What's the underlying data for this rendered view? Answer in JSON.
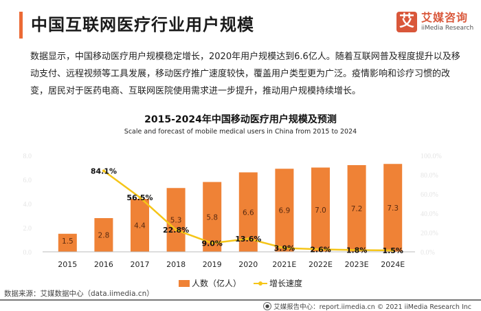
{
  "header": {
    "title": "中国互联网医疗行业用户规模",
    "logo_mark": "艾",
    "logo_cn": "艾媒咨询",
    "logo_en": "iiMedia Research",
    "accent_color": "#ec6a35"
  },
  "description": "数据显示，中国移动医疗用户规模稳定增长，2020年用户规模达到6.6亿人。随着互联网普及程度提升以及移动支付、远程视频等工具发展，移动医疗推广速度较快，覆盖用户类型更为广泛。疫情影响和诊疗习惯的改变，居民对于医药电商、互联网医院使用需求进一步提升，推动用户规模持续增长。",
  "chart_data": {
    "type": "bar",
    "title": "2015-2024年中国移动医疗用户规模及预测",
    "subtitle": "Scale and forecast of mobile medical users in China from 2015 to 2024",
    "categories": [
      "2015",
      "2016",
      "2017",
      "2018",
      "2019",
      "2020",
      "2021E",
      "2022E",
      "2023E",
      "2024E"
    ],
    "series": [
      {
        "name": "人数（亿人）",
        "type": "bar",
        "axis": "left",
        "color": "#ef8236",
        "values": [
          1.5,
          2.8,
          4.4,
          5.3,
          5.8,
          6.6,
          6.9,
          7.0,
          7.2,
          7.3
        ],
        "labels": [
          "1.5",
          "2.8",
          "4.4",
          "5.3",
          "5.8",
          "6.6",
          "6.9",
          "7.0",
          "7.2",
          "7.3"
        ]
      },
      {
        "name": "增长速度",
        "type": "line",
        "axis": "right",
        "color": "#f5c518",
        "values": [
          null,
          84.1,
          56.5,
          22.8,
          9.0,
          13.6,
          3.9,
          2.6,
          1.8,
          1.5
        ],
        "labels": [
          "",
          "84.1%",
          "56.5%",
          "22.8%",
          "9.0%",
          "13.6%",
          "3.9%",
          "2.6%",
          "1.8%",
          "1.5%"
        ]
      }
    ],
    "y_left": {
      "ylim": [
        0,
        8
      ],
      "ticks": [
        "0.0",
        "2.0",
        "4.0",
        "6.0",
        "8.0"
      ]
    },
    "y_right": {
      "ylim": [
        0,
        100
      ],
      "ticks": [
        "0.0%",
        "20.0%",
        "40.0%",
        "60.0%",
        "80.0%",
        "100.0%"
      ]
    },
    "xlabel": "",
    "ylabel": "",
    "grid": false,
    "legend_position": "bottom"
  },
  "source": "数据来源：艾媒数据中心（data.iimedia.cn）",
  "footer": {
    "icon": "globe-icon",
    "text": "艾媒报告中心：report.iimedia.cn  ©  2021  iiMedia Research  Inc"
  }
}
